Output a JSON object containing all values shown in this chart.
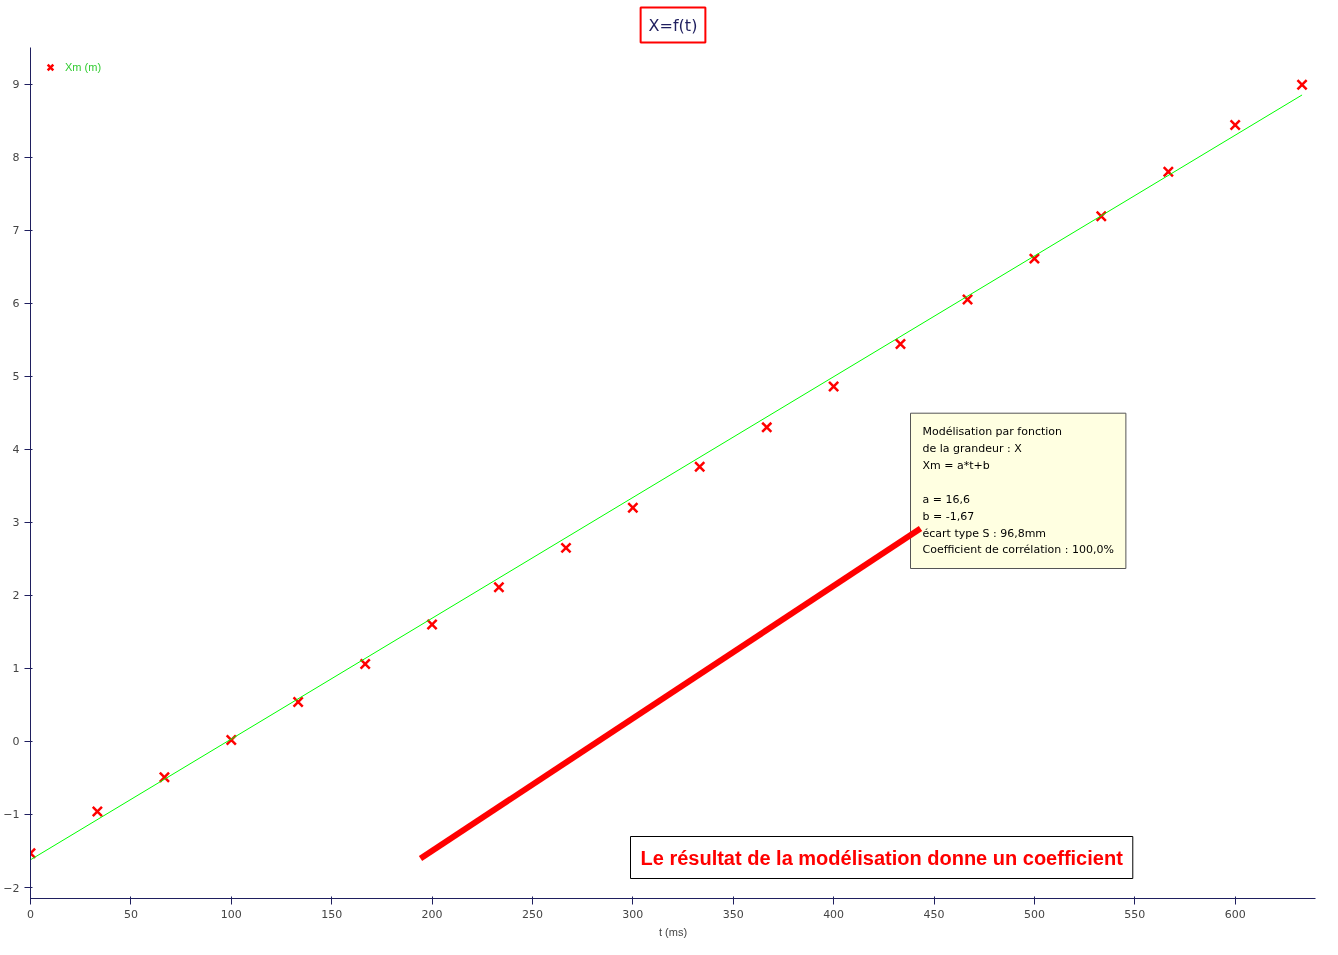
{
  "chart_data": {
    "type": "scatter",
    "title": "X=f(t)",
    "xlabel": "t (ms)",
    "x": [
      0,
      33.3,
      66.7,
      100,
      133.3,
      166.7,
      200,
      233.3,
      266.7,
      300,
      333.3,
      366.7,
      400,
      433.3,
      466.7,
      500,
      533.3,
      566.7,
      600,
      633.3
    ],
    "series": [
      {
        "name": "Xm (m)",
        "color": "#ff0000",
        "marker": "cross",
        "values": [
          -1.53,
          -0.96,
          -0.49,
          0.02,
          0.54,
          1.06,
          1.6,
          2.11,
          2.65,
          3.2,
          3.76,
          4.3,
          4.86,
          5.44,
          6.05,
          6.61,
          7.19,
          7.8,
          8.44,
          8.99
        ]
      },
      {
        "type": "line",
        "color": "#00ff00",
        "x": [
          0,
          633.3
        ],
        "values": [
          -1.62,
          8.85
        ]
      }
    ],
    "xlim": [
      0,
      640
    ],
    "ylim": [
      -2.15,
      9.5
    ],
    "xticks": [
      0,
      50,
      100,
      150,
      200,
      250,
      300,
      350,
      400,
      450,
      500,
      550,
      600
    ],
    "yticks": [
      -2,
      -1,
      0,
      1,
      2,
      3,
      4,
      5,
      6,
      7,
      8,
      9
    ],
    "grid": false,
    "legend": "top left",
    "annotations": [
      "Modélisation par fonction\nde la grandeur : X\nXm = a*t+b\n\na = 16,6\nb = -1,67\nécart type S : 96,8mm\nCoefficient de corrélation : 100,0%",
      "Le résultat de la modélisation donne un coefficient"
    ]
  }
}
